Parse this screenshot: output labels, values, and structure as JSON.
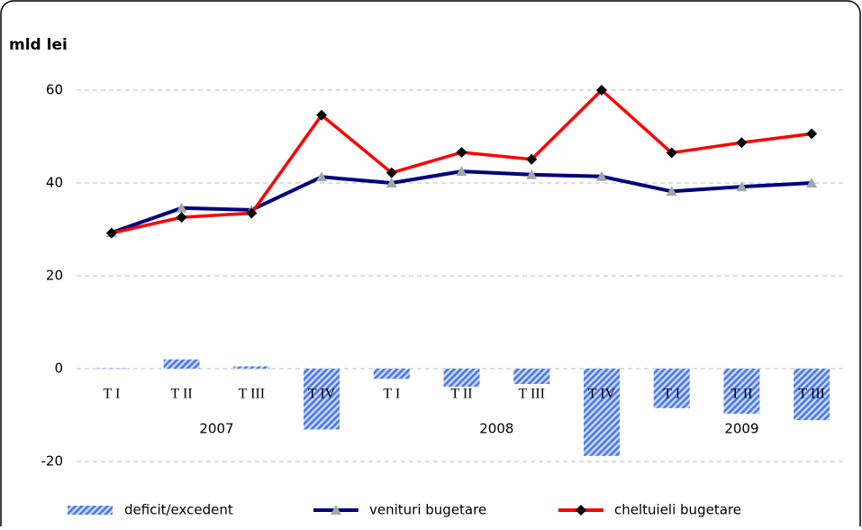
{
  "chart_data": {
    "type": "combo",
    "title": "mld lei",
    "categories": [
      "T I",
      "T II",
      "T III",
      "T IV",
      "T I",
      "T II",
      "T III",
      "T IV",
      "T I",
      "T II",
      "T III"
    ],
    "years": [
      {
        "label": "2007",
        "span": 4
      },
      {
        "label": "2008",
        "span": 4
      },
      {
        "label": "2009",
        "span": 3
      }
    ],
    "series": [
      {
        "name": "deficit/excedent",
        "type": "bar",
        "color": "#4a78e8",
        "values": [
          0.1,
          2.0,
          0.5,
          -13.1,
          -2.2,
          -3.9,
          -3.3,
          -18.8,
          -8.5,
          -9.7,
          -11.1
        ]
      },
      {
        "name": "venituri bugetare",
        "type": "line",
        "marker": "triangle",
        "color": "#000080",
        "marker_color": "#a6a6a6",
        "values": [
          29.3,
          34.6,
          34.2,
          41.3,
          40.0,
          42.5,
          41.8,
          41.4,
          38.2,
          39.2,
          40.0
        ]
      },
      {
        "name": "cheltuieli bugetare",
        "type": "line",
        "marker": "diamond",
        "color": "#ff0000",
        "marker_color": "#000000",
        "values": [
          29.2,
          32.6,
          33.5,
          54.6,
          42.2,
          46.6,
          45.1,
          60.0,
          46.5,
          48.7,
          50.6
        ]
      }
    ],
    "ylim": [
      -25,
      65
    ],
    "yticks": [
      -20,
      0,
      20,
      40,
      60
    ],
    "grid": true,
    "legend": "bottom"
  }
}
